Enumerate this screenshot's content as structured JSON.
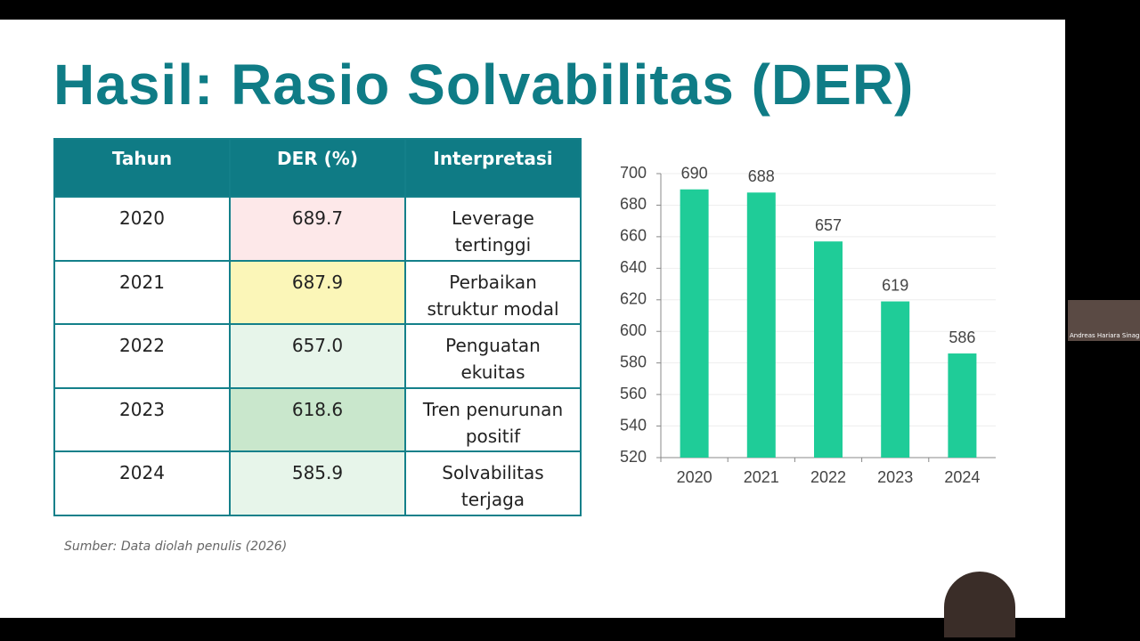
{
  "slide": {
    "title": "Hasil: Rasio Solvabilitas (DER)",
    "table": {
      "headers": [
        "Tahun",
        "DER (%)",
        "Interpretasi"
      ],
      "rows": [
        [
          "2020",
          "689.7",
          [
            "Leverage",
            "tertinggi"
          ]
        ],
        [
          "2021",
          "687.9",
          [
            "Perbaikan",
            "struktur modal"
          ]
        ],
        [
          "2022",
          "657.0",
          [
            "Penguatan",
            "ekuitas"
          ]
        ],
        [
          "2023",
          "618.6",
          [
            "Tren penurunan",
            "positif"
          ]
        ],
        [
          "2024",
          "585.9",
          [
            "Solvabilitas",
            "terjaga"
          ]
        ]
      ],
      "der_colors": [
        "#fde8e9",
        "#fbf6b8",
        "#e7f5ea",
        "#c9e7cc",
        "#e7f5ea"
      ]
    },
    "source": "Sumber: Data diolah penulis (2026)"
  },
  "chart_data": {
    "type": "bar",
    "categories": [
      "2020",
      "2021",
      "2022",
      "2023",
      "2024"
    ],
    "values": [
      690,
      688,
      657,
      619,
      586
    ],
    "color": "#1fcc98",
    "ylim": [
      520,
      700
    ],
    "yticks": [
      520,
      540,
      560,
      580,
      600,
      620,
      640,
      660,
      680,
      700
    ],
    "grid": true
  },
  "participant": {
    "name": "Andreas Hariara Sinaga"
  }
}
